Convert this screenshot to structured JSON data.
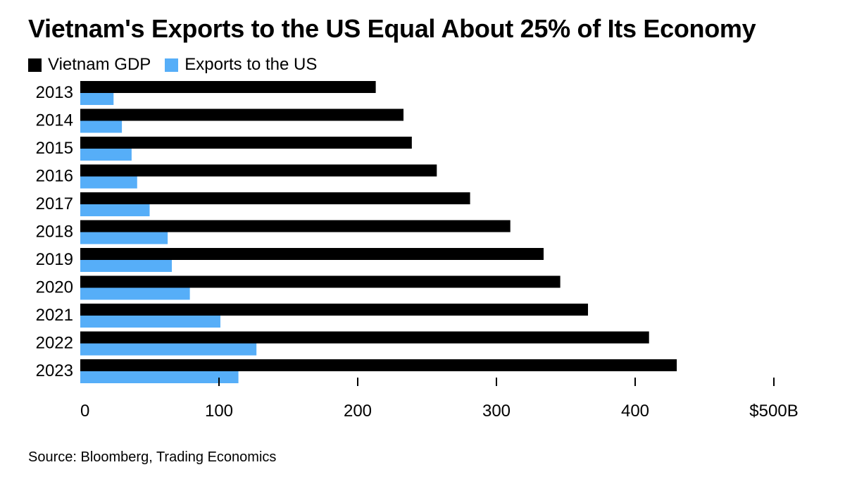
{
  "chart_data": {
    "type": "bar",
    "orientation": "horizontal",
    "title": "Vietnam's Exports to the US Equal About 25% of Its Economy",
    "categories": [
      "2013",
      "2014",
      "2015",
      "2016",
      "2017",
      "2018",
      "2019",
      "2020",
      "2021",
      "2022",
      "2023"
    ],
    "series": [
      {
        "name": "Vietnam GDP",
        "color": "#000000",
        "values": [
          213,
          233,
          239,
          257,
          281,
          310,
          334,
          346,
          366,
          410,
          430
        ]
      },
      {
        "name": "Exports to the US",
        "color": "#56aef8",
        "values": [
          24,
          30,
          37,
          41,
          50,
          63,
          66,
          79,
          101,
          127,
          114
        ]
      }
    ],
    "xlim": [
      0,
      500
    ],
    "xticks": [
      0,
      100,
      200,
      300,
      400,
      500
    ],
    "xtick_labels": [
      "0",
      "100",
      "200",
      "300",
      "400",
      "$500B"
    ],
    "xlabel": "",
    "ylabel": "",
    "legend": "top-left",
    "grid": false,
    "source": "Source: Bloomberg, Trading Economics"
  }
}
